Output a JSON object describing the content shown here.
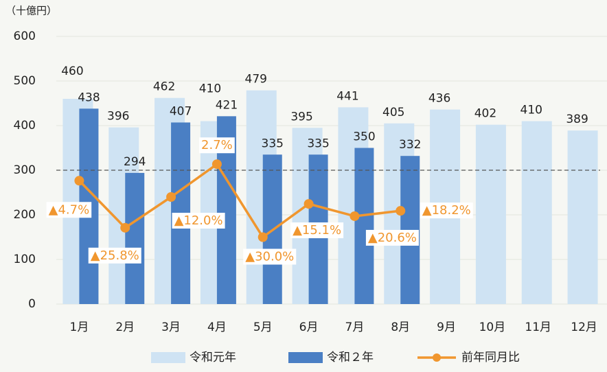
{
  "chart_data": {
    "type": "bar",
    "y_label": "（十億円）",
    "categories": [
      "1月",
      "2月",
      "3月",
      "4月",
      "5月",
      "6月",
      "7月",
      "8月",
      "9月",
      "10月",
      "11月",
      "12月"
    ],
    "series": [
      {
        "name": "令和元年",
        "color": "#cfe3f3",
        "values": [
          460,
          396,
          462,
          410,
          479,
          395,
          441,
          405,
          436,
          402,
          410,
          389
        ]
      },
      {
        "name": "令和２年",
        "color": "#4a7fc4",
        "values": [
          438,
          294,
          407,
          421,
          335,
          335,
          350,
          332,
          null,
          null,
          null,
          null
        ]
      },
      {
        "name": "前年同月比",
        "type": "line",
        "axis": "y2",
        "color": "#f0962e",
        "values": [
          -4.7,
          -25.8,
          -12.0,
          2.7,
          -30.0,
          -15.1,
          -20.6,
          -18.2,
          null,
          null,
          null,
          null
        ],
        "value_labels": [
          "▲4.7%",
          "▲25.8%",
          "▲12.0%",
          "2.7%",
          "▲30.0%",
          "▲15.1%",
          "▲20.6%",
          "▲18.2%",
          null,
          null,
          null,
          null
        ]
      }
    ],
    "ylim": [
      0,
      600
    ],
    "yticks": [
      0,
      100,
      200,
      300,
      400,
      500,
      600
    ],
    "y2lim": [
      -60,
      60
    ],
    "hline": {
      "value": 0,
      "axis": "y2",
      "style": "dashed"
    },
    "grid": true,
    "legend": "bottom"
  }
}
